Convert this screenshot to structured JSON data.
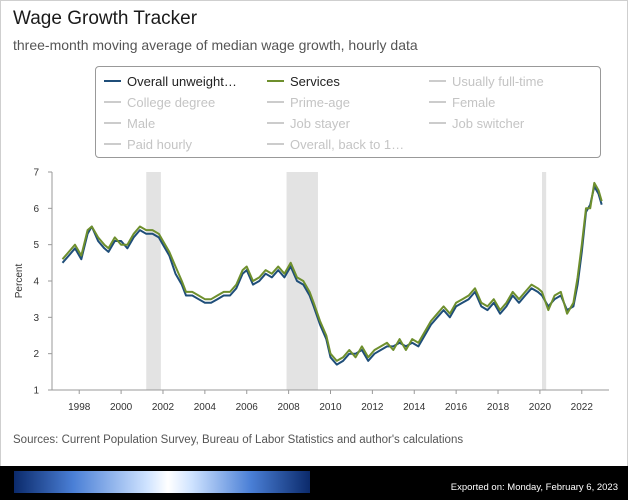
{
  "title": "Wage Growth Tracker",
  "subtitle": "three-month moving average of median wage growth, hourly data",
  "legend": [
    {
      "label": "Overall unweight…",
      "color": "#1f4e79",
      "active": true
    },
    {
      "label": "Services",
      "color": "#6e8f2d",
      "active": true
    },
    {
      "label": "Usually full-time",
      "color": "#cccccc",
      "active": false
    },
    {
      "label": "College degree",
      "color": "#cccccc",
      "active": false
    },
    {
      "label": "Prime-age",
      "color": "#cccccc",
      "active": false
    },
    {
      "label": "Female",
      "color": "#cccccc",
      "active": false
    },
    {
      "label": "Male",
      "color": "#cccccc",
      "active": false
    },
    {
      "label": "Job stayer",
      "color": "#cccccc",
      "active": false
    },
    {
      "label": "Job switcher",
      "color": "#cccccc",
      "active": false
    },
    {
      "label": "Paid hourly",
      "color": "#cccccc",
      "active": false
    },
    {
      "label": "Overall, back to 1…",
      "color": "#cccccc",
      "active": false
    }
  ],
  "source": "Sources: Current Population Survey, Bureau of Labor Statistics and author's calculations",
  "footer": {
    "exported": "Exported on: Monday, February 6, 2023"
  },
  "chart_data": {
    "type": "line",
    "ylabel": "Percent",
    "xlabel": "",
    "ylim": [
      1,
      7
    ],
    "xlim": [
      1996.7,
      2023.3
    ],
    "yticks": [
      "1",
      "2",
      "3",
      "4",
      "5",
      "6",
      "7"
    ],
    "xticks": [
      "1998",
      "2000",
      "2002",
      "2004",
      "2006",
      "2008",
      "2010",
      "2012",
      "2014",
      "2016",
      "2018",
      "2020",
      "2022"
    ],
    "grid": false,
    "recessions": [
      [
        2001.2,
        2001.9
      ],
      [
        2007.9,
        2009.4
      ],
      [
        2020.1,
        2020.3
      ]
    ],
    "series": [
      {
        "name": "Overall unweight…",
        "color": "#1f4e79",
        "points": [
          [
            1997.2,
            4.5
          ],
          [
            1997.5,
            4.7
          ],
          [
            1997.8,
            4.9
          ],
          [
            1998.1,
            4.6
          ],
          [
            1998.4,
            5.3
          ],
          [
            1998.6,
            5.5
          ],
          [
            1998.9,
            5.1
          ],
          [
            1999.2,
            4.9
          ],
          [
            1999.4,
            4.8
          ],
          [
            1999.7,
            5.1
          ],
          [
            2000.0,
            5.1
          ],
          [
            2000.3,
            4.9
          ],
          [
            2000.6,
            5.2
          ],
          [
            2000.9,
            5.4
          ],
          [
            2001.2,
            5.3
          ],
          [
            2001.5,
            5.3
          ],
          [
            2001.8,
            5.2
          ],
          [
            2002.0,
            5.0
          ],
          [
            2002.3,
            4.7
          ],
          [
            2002.6,
            4.2
          ],
          [
            2002.9,
            3.9
          ],
          [
            2003.1,
            3.6
          ],
          [
            2003.4,
            3.6
          ],
          [
            2003.7,
            3.5
          ],
          [
            2004.0,
            3.4
          ],
          [
            2004.3,
            3.4
          ],
          [
            2004.6,
            3.5
          ],
          [
            2004.9,
            3.6
          ],
          [
            2005.2,
            3.6
          ],
          [
            2005.5,
            3.8
          ],
          [
            2005.8,
            4.2
          ],
          [
            2006.0,
            4.3
          ],
          [
            2006.3,
            3.9
          ],
          [
            2006.6,
            4.0
          ],
          [
            2006.9,
            4.2
          ],
          [
            2007.2,
            4.1
          ],
          [
            2007.5,
            4.3
          ],
          [
            2007.8,
            4.1
          ],
          [
            2008.1,
            4.4
          ],
          [
            2008.4,
            4.0
          ],
          [
            2008.7,
            3.9
          ],
          [
            2009.0,
            3.6
          ],
          [
            2009.2,
            3.3
          ],
          [
            2009.5,
            2.8
          ],
          [
            2009.8,
            2.4
          ],
          [
            2010.0,
            1.9
          ],
          [
            2010.3,
            1.7
          ],
          [
            2010.6,
            1.8
          ],
          [
            2010.9,
            2.0
          ],
          [
            2011.2,
            2.0
          ],
          [
            2011.5,
            2.1
          ],
          [
            2011.8,
            1.8
          ],
          [
            2012.1,
            2.0
          ],
          [
            2012.4,
            2.1
          ],
          [
            2012.7,
            2.2
          ],
          [
            2013.0,
            2.2
          ],
          [
            2013.3,
            2.3
          ],
          [
            2013.6,
            2.2
          ],
          [
            2013.9,
            2.3
          ],
          [
            2014.2,
            2.2
          ],
          [
            2014.5,
            2.5
          ],
          [
            2014.8,
            2.8
          ],
          [
            2015.1,
            3.0
          ],
          [
            2015.4,
            3.2
          ],
          [
            2015.7,
            3.0
          ],
          [
            2016.0,
            3.3
          ],
          [
            2016.3,
            3.4
          ],
          [
            2016.6,
            3.5
          ],
          [
            2016.9,
            3.7
          ],
          [
            2017.2,
            3.3
          ],
          [
            2017.5,
            3.2
          ],
          [
            2017.8,
            3.4
          ],
          [
            2018.1,
            3.1
          ],
          [
            2018.4,
            3.3
          ],
          [
            2018.7,
            3.6
          ],
          [
            2019.0,
            3.4
          ],
          [
            2019.3,
            3.6
          ],
          [
            2019.6,
            3.8
          ],
          [
            2019.9,
            3.7
          ],
          [
            2020.1,
            3.6
          ],
          [
            2020.4,
            3.3
          ],
          [
            2020.7,
            3.5
          ],
          [
            2021.0,
            3.6
          ],
          [
            2021.3,
            3.2
          ],
          [
            2021.6,
            3.3
          ],
          [
            2021.8,
            3.9
          ],
          [
            2022.0,
            4.8
          ],
          [
            2022.2,
            5.9
          ],
          [
            2022.4,
            6.1
          ],
          [
            2022.6,
            6.6
          ],
          [
            2022.8,
            6.4
          ],
          [
            2022.95,
            6.1
          ]
        ]
      },
      {
        "name": "Services",
        "color": "#6e8f2d",
        "points": [
          [
            1997.2,
            4.6
          ],
          [
            1997.5,
            4.8
          ],
          [
            1997.8,
            5.0
          ],
          [
            1998.1,
            4.7
          ],
          [
            1998.4,
            5.4
          ],
          [
            1998.6,
            5.5
          ],
          [
            1998.9,
            5.2
          ],
          [
            1999.2,
            5.0
          ],
          [
            1999.4,
            4.9
          ],
          [
            1999.7,
            5.2
          ],
          [
            2000.0,
            5.0
          ],
          [
            2000.3,
            5.0
          ],
          [
            2000.6,
            5.3
          ],
          [
            2000.9,
            5.5
          ],
          [
            2001.2,
            5.4
          ],
          [
            2001.5,
            5.4
          ],
          [
            2001.8,
            5.3
          ],
          [
            2002.0,
            5.1
          ],
          [
            2002.3,
            4.8
          ],
          [
            2002.6,
            4.4
          ],
          [
            2002.9,
            4.0
          ],
          [
            2003.1,
            3.7
          ],
          [
            2003.4,
            3.7
          ],
          [
            2003.7,
            3.6
          ],
          [
            2004.0,
            3.5
          ],
          [
            2004.3,
            3.5
          ],
          [
            2004.6,
            3.6
          ],
          [
            2004.9,
            3.7
          ],
          [
            2005.2,
            3.7
          ],
          [
            2005.5,
            3.9
          ],
          [
            2005.8,
            4.3
          ],
          [
            2006.0,
            4.4
          ],
          [
            2006.3,
            4.0
          ],
          [
            2006.6,
            4.1
          ],
          [
            2006.9,
            4.3
          ],
          [
            2007.2,
            4.2
          ],
          [
            2007.5,
            4.4
          ],
          [
            2007.8,
            4.2
          ],
          [
            2008.1,
            4.5
          ],
          [
            2008.4,
            4.1
          ],
          [
            2008.7,
            4.0
          ],
          [
            2009.0,
            3.7
          ],
          [
            2009.2,
            3.4
          ],
          [
            2009.5,
            2.9
          ],
          [
            2009.8,
            2.5
          ],
          [
            2010.0,
            2.0
          ],
          [
            2010.3,
            1.8
          ],
          [
            2010.6,
            1.9
          ],
          [
            2010.9,
            2.1
          ],
          [
            2011.2,
            1.9
          ],
          [
            2011.5,
            2.2
          ],
          [
            2011.8,
            1.9
          ],
          [
            2012.1,
            2.1
          ],
          [
            2012.4,
            2.2
          ],
          [
            2012.7,
            2.3
          ],
          [
            2013.0,
            2.1
          ],
          [
            2013.3,
            2.4
          ],
          [
            2013.6,
            2.1
          ],
          [
            2013.9,
            2.4
          ],
          [
            2014.2,
            2.3
          ],
          [
            2014.5,
            2.6
          ],
          [
            2014.8,
            2.9
          ],
          [
            2015.1,
            3.1
          ],
          [
            2015.4,
            3.3
          ],
          [
            2015.7,
            3.1
          ],
          [
            2016.0,
            3.4
          ],
          [
            2016.3,
            3.5
          ],
          [
            2016.6,
            3.6
          ],
          [
            2016.9,
            3.8
          ],
          [
            2017.2,
            3.4
          ],
          [
            2017.5,
            3.3
          ],
          [
            2017.8,
            3.5
          ],
          [
            2018.1,
            3.2
          ],
          [
            2018.4,
            3.4
          ],
          [
            2018.7,
            3.7
          ],
          [
            2019.0,
            3.5
          ],
          [
            2019.3,
            3.7
          ],
          [
            2019.6,
            3.9
          ],
          [
            2019.9,
            3.8
          ],
          [
            2020.1,
            3.7
          ],
          [
            2020.4,
            3.2
          ],
          [
            2020.7,
            3.6
          ],
          [
            2021.0,
            3.7
          ],
          [
            2021.3,
            3.1
          ],
          [
            2021.6,
            3.4
          ],
          [
            2021.8,
            4.1
          ],
          [
            2022.0,
            5.0
          ],
          [
            2022.2,
            6.0
          ],
          [
            2022.4,
            6.0
          ],
          [
            2022.6,
            6.7
          ],
          [
            2022.8,
            6.5
          ],
          [
            2022.95,
            6.2
          ]
        ]
      }
    ]
  }
}
